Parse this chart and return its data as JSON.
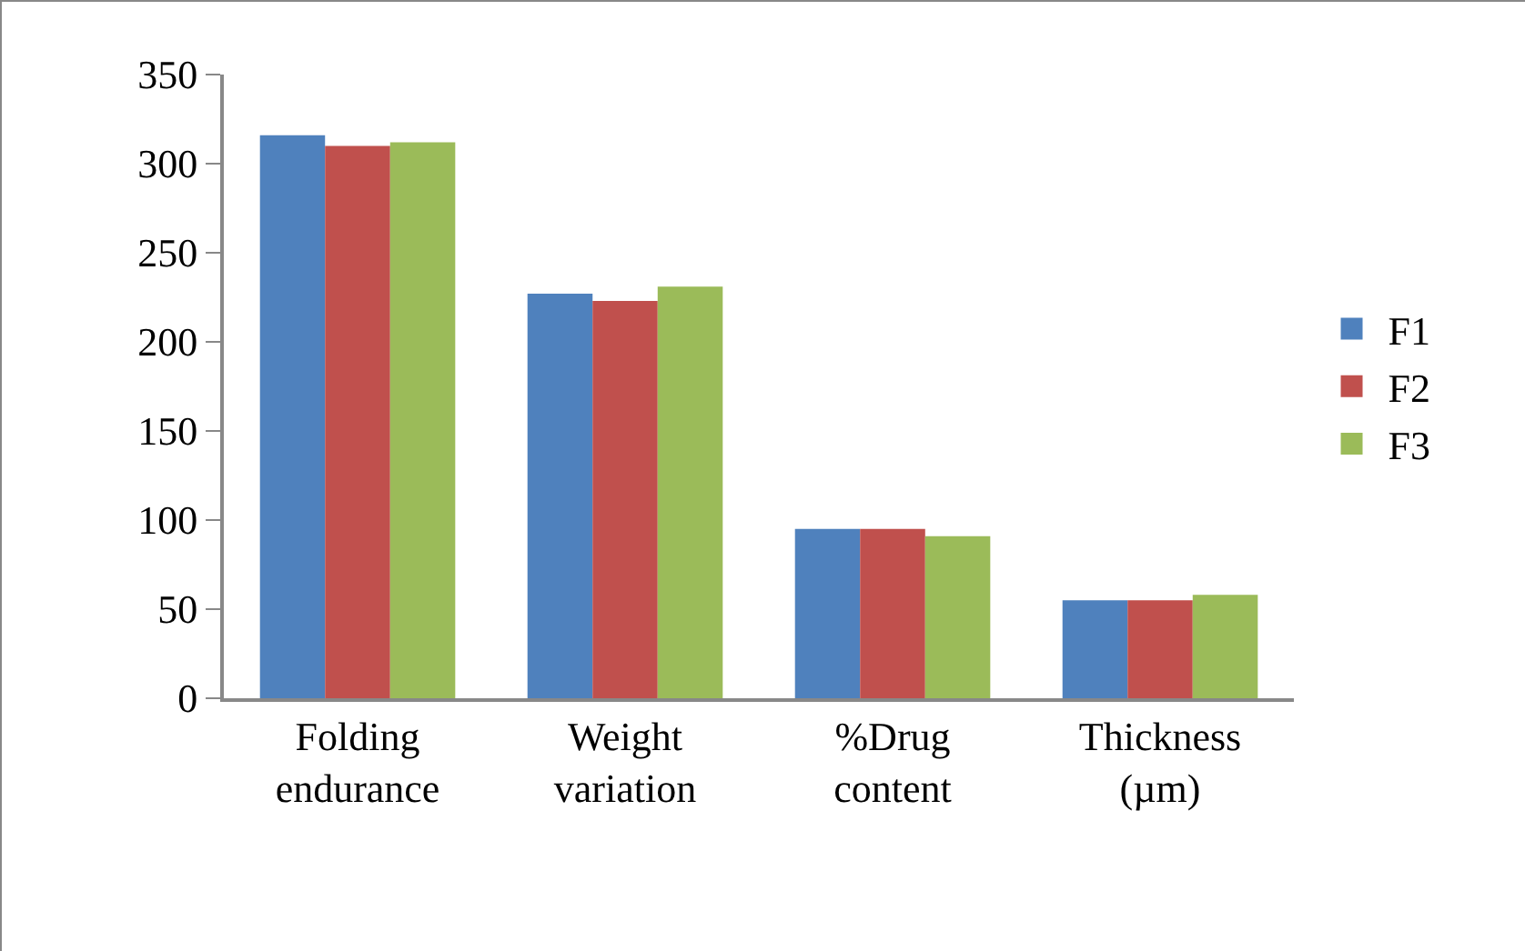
{
  "chart_data": {
    "type": "bar",
    "categories": [
      "Folding endurance",
      "Weight variation",
      "%Drug content",
      "Thickness (µm)"
    ],
    "series": [
      {
        "name": "F1",
        "color": "#4f81bd",
        "values": [
          316,
          227,
          95,
          55
        ]
      },
      {
        "name": "F2",
        "color": "#c0504d",
        "values": [
          310,
          223,
          95,
          55
        ]
      },
      {
        "name": "F3",
        "color": "#9bbb59",
        "values": [
          312,
          231,
          91,
          58
        ]
      }
    ],
    "ylim": [
      0,
      350
    ],
    "yticks": [
      0,
      50,
      100,
      150,
      200,
      250,
      300,
      350
    ],
    "grid": false,
    "legend": "right"
  }
}
